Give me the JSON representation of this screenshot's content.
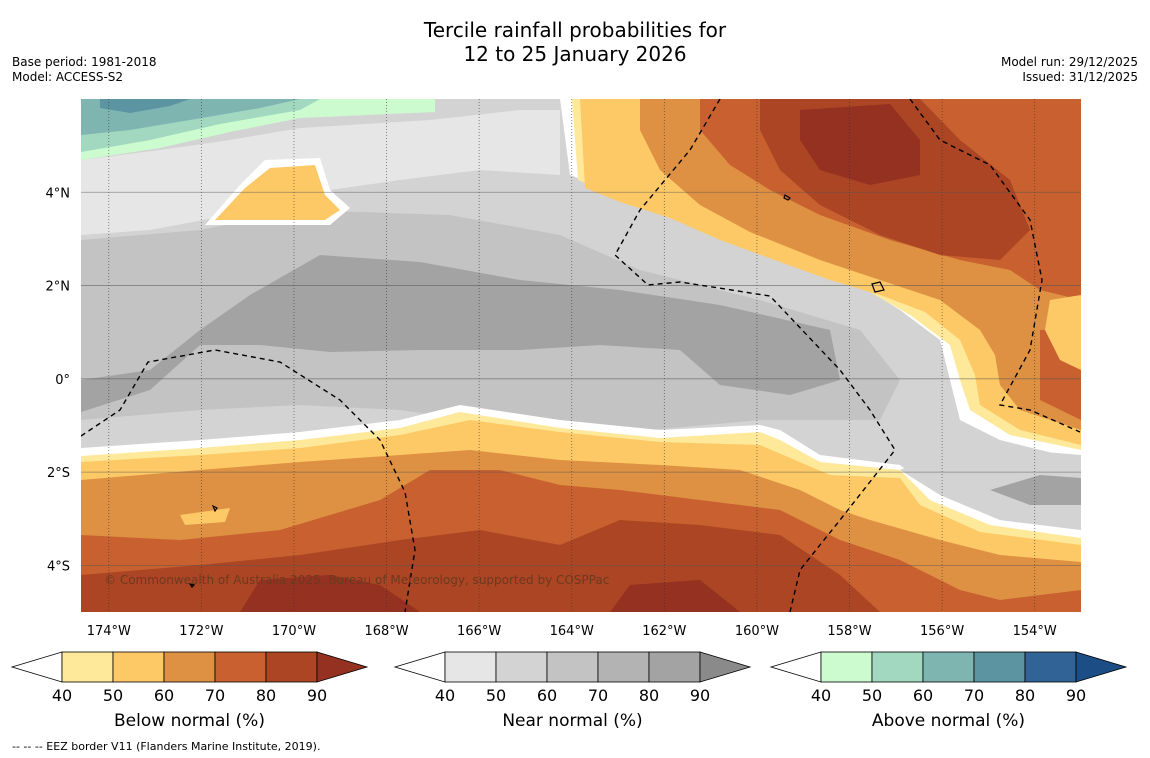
{
  "header": {
    "title_line1": "Tercile rainfall probabilities for",
    "title_line2": "12 to 25 January 2026",
    "base_period": "Base period: 1981-2018",
    "model": "Model: ACCESS-S2",
    "model_run": "Model run: 29/12/2025",
    "issued": "Issued: 31/12/2025"
  },
  "map": {
    "copyright": "© Commonwealth of Australia 2025, Bureau of Meteorology, supported by COSPPac",
    "lon_ticks": [
      "174°W",
      "172°W",
      "170°W",
      "168°W",
      "166°W",
      "164°W",
      "162°W",
      "160°W",
      "158°W",
      "156°W",
      "154°W"
    ],
    "lat_ticks": [
      "4°N",
      "2°N",
      "0°",
      "2°S",
      "4°S"
    ],
    "lon_values": [
      -174,
      -172,
      -170,
      -168,
      -166,
      -164,
      -162,
      -160,
      -158,
      -156,
      -154
    ],
    "lat_values": [
      4,
      2,
      0,
      -2,
      -4
    ],
    "extent": {
      "lon_min": -174.6,
      "lon_max": -153.0,
      "lat_min": -5.0,
      "lat_max": 6.0
    }
  },
  "colorbars": [
    {
      "name": "below",
      "label": "Below normal (%)",
      "ticks": [
        "40",
        "50",
        "60",
        "70",
        "80",
        "90"
      ],
      "colors": [
        "#ffffff",
        "#fee89a",
        "#fdc966",
        "#de9142",
        "#c8612f",
        "#ac4523",
        "#943120"
      ]
    },
    {
      "name": "near",
      "label": "Near normal (%)",
      "ticks": [
        "40",
        "50",
        "60",
        "70",
        "80",
        "90"
      ],
      "colors": [
        "#ffffff",
        "#e6e6e6",
        "#d3d3d3",
        "#c3c3c3",
        "#b3b3b3",
        "#a3a3a3",
        "#8a8a8a"
      ]
    },
    {
      "name": "above",
      "label": "Above normal (%)",
      "ticks": [
        "40",
        "50",
        "60",
        "70",
        "80",
        "90"
      ],
      "colors": [
        "#ffffff",
        "#cbfbcf",
        "#a1d8bf",
        "#7fb5b1",
        "#5c94a2",
        "#326396",
        "#1c4d85"
      ]
    }
  ],
  "footnote": "--  --  -- EEZ border V11 (Flanders Marine Institute, 2019).",
  "colors": {
    "bn50": "#fee89a",
    "bn60": "#fdc966",
    "bn70": "#de9142",
    "bn80": "#c8612f",
    "bn90": "#ac4523",
    "bn100": "#943120",
    "nn50": "#e6e6e6",
    "nn60": "#d3d3d3",
    "nn70": "#c3c3c3",
    "nn80": "#b3b3b3",
    "nn90": "#a3a3a3",
    "an50": "#cbfbcf",
    "an60": "#a1d8bf",
    "an70": "#7fb5b1",
    "an80": "#5c94a2",
    "an90": "#326396"
  }
}
